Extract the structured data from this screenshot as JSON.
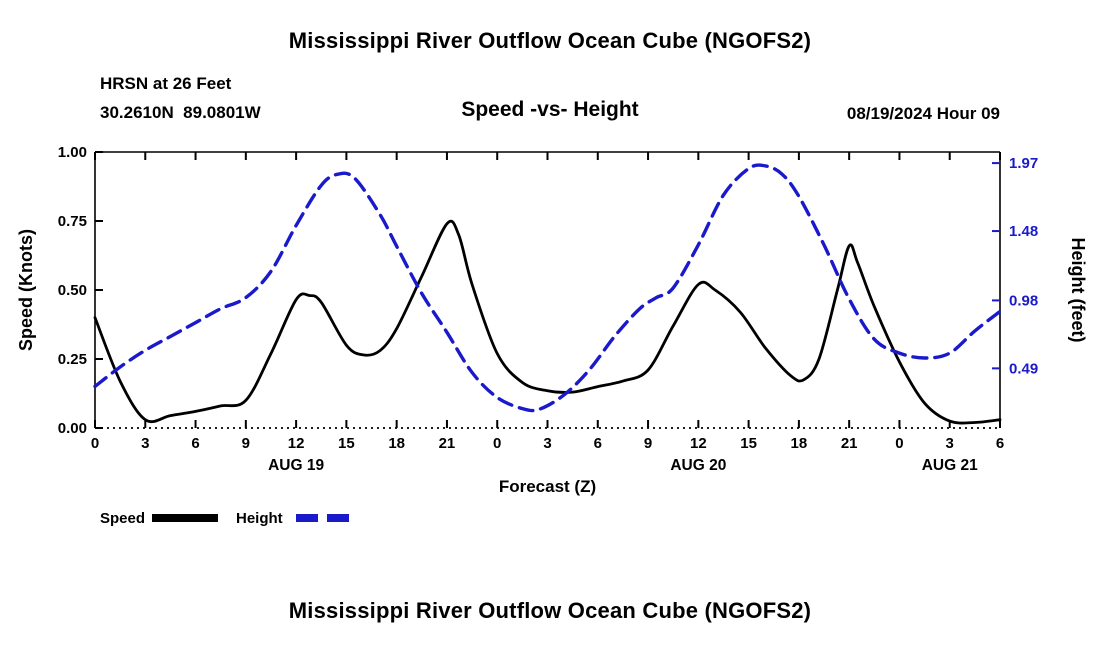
{
  "header": {
    "top_title": "Mississippi River Outflow Ocean Cube (NGOFS2)",
    "station_name": "HRSN at 26 Feet",
    "station_coords": "30.2610N  89.0801W",
    "plot_title": "Speed -vs- Height",
    "datetime": "08/19/2024 Hour 09"
  },
  "footer": {
    "bottom_title": "Mississippi River Outflow Ocean Cube (NGOFS2)"
  },
  "colors": {
    "speed": "#000000",
    "height": "#1a1acb"
  },
  "chart_data": {
    "type": "line",
    "title": "Speed -vs- Height",
    "xlabel": "Forecast (Z)",
    "ylabel_left": "Speed (Knots)",
    "ylabel_right": "Height (feet)",
    "x_hours_span": 54,
    "x_tick_interval_hours": 3,
    "x_tick_labels": [
      "0",
      "3",
      "6",
      "9",
      "12",
      "15",
      "18",
      "21",
      "0",
      "3",
      "6",
      "9",
      "12",
      "15",
      "18",
      "21",
      "0",
      "3",
      "6"
    ],
    "date_labels": [
      {
        "label": "AUG 19",
        "hour": 12
      },
      {
        "label": "AUG 20",
        "hour": 36
      },
      {
        "label": "AUG 21",
        "hour": 51
      }
    ],
    "left_axis": {
      "min": 0.0,
      "max": 1.0,
      "tick_values": [
        0.0,
        0.25,
        0.5,
        0.75,
        1.0
      ],
      "tick_labels": [
        "0.00",
        "0.25",
        "0.50",
        "0.75",
        "1.00"
      ]
    },
    "right_axis": {
      "min": 0.06,
      "max": 2.05,
      "tick_values": [
        0.49,
        0.98,
        1.48,
        1.97
      ],
      "tick_labels": [
        "0.49",
        "0.98",
        "1.48",
        "1.97"
      ]
    },
    "grid": false,
    "legend_position": "bottom-left",
    "series": [
      {
        "name": "Speed",
        "axis": "left",
        "units": "knots",
        "style": "solid",
        "color": "#000000",
        "points": [
          [
            0,
            0.4
          ],
          [
            1.5,
            0.17
          ],
          [
            3,
            0.03
          ],
          [
            4.5,
            0.045
          ],
          [
            6,
            0.06
          ],
          [
            7.5,
            0.08
          ],
          [
            9,
            0.1
          ],
          [
            10.5,
            0.27
          ],
          [
            12,
            0.465
          ],
          [
            12.8,
            0.48
          ],
          [
            13.5,
            0.455
          ],
          [
            15,
            0.3
          ],
          [
            16,
            0.265
          ],
          [
            17,
            0.28
          ],
          [
            18,
            0.36
          ],
          [
            19.5,
            0.55
          ],
          [
            21,
            0.74
          ],
          [
            21.7,
            0.7
          ],
          [
            22.5,
            0.52
          ],
          [
            24,
            0.27
          ],
          [
            25.5,
            0.165
          ],
          [
            27,
            0.135
          ],
          [
            28.5,
            0.13
          ],
          [
            30,
            0.15
          ],
          [
            31.5,
            0.17
          ],
          [
            33,
            0.21
          ],
          [
            34.5,
            0.37
          ],
          [
            36,
            0.52
          ],
          [
            37,
            0.5
          ],
          [
            38.5,
            0.42
          ],
          [
            40,
            0.29
          ],
          [
            41.5,
            0.19
          ],
          [
            42.3,
            0.175
          ],
          [
            43.2,
            0.25
          ],
          [
            44.3,
            0.5
          ],
          [
            45,
            0.66
          ],
          [
            45.5,
            0.6
          ],
          [
            46.5,
            0.44
          ],
          [
            48,
            0.24
          ],
          [
            49.5,
            0.09
          ],
          [
            51,
            0.025
          ],
          [
            52.5,
            0.02
          ],
          [
            54,
            0.03
          ]
        ]
      },
      {
        "name": "Height",
        "axis": "right",
        "units": "feet",
        "style": "dashed",
        "color": "#1a1acb",
        "points": [
          [
            0,
            0.36
          ],
          [
            1.5,
            0.5
          ],
          [
            3,
            0.62
          ],
          [
            4.5,
            0.72
          ],
          [
            6,
            0.82
          ],
          [
            7.5,
            0.92
          ],
          [
            9,
            1.0
          ],
          [
            10.5,
            1.19
          ],
          [
            12,
            1.52
          ],
          [
            13.5,
            1.81
          ],
          [
            14.5,
            1.89
          ],
          [
            15.5,
            1.86
          ],
          [
            17,
            1.6
          ],
          [
            18,
            1.37
          ],
          [
            19.5,
            1.03
          ],
          [
            21,
            0.75
          ],
          [
            22.5,
            0.46
          ],
          [
            24,
            0.28
          ],
          [
            25.5,
            0.2
          ],
          [
            26.5,
            0.195
          ],
          [
            28,
            0.3
          ],
          [
            29.5,
            0.48
          ],
          [
            31,
            0.72
          ],
          [
            32.5,
            0.92
          ],
          [
            33.5,
            1.0
          ],
          [
            34.5,
            1.07
          ],
          [
            36,
            1.38
          ],
          [
            37.5,
            1.74
          ],
          [
            39,
            1.93
          ],
          [
            40,
            1.95
          ],
          [
            41,
            1.89
          ],
          [
            42,
            1.73
          ],
          [
            43.5,
            1.38
          ],
          [
            45,
            0.99
          ],
          [
            46.5,
            0.7
          ],
          [
            48,
            0.6
          ],
          [
            49.5,
            0.565
          ],
          [
            51,
            0.6
          ],
          [
            52.5,
            0.76
          ],
          [
            54,
            0.9
          ]
        ]
      }
    ],
    "legend": [
      {
        "label": "Speed",
        "color": "#000000",
        "style": "solid"
      },
      {
        "label": "Height",
        "color": "#1a1acb",
        "style": "dashed"
      }
    ]
  }
}
